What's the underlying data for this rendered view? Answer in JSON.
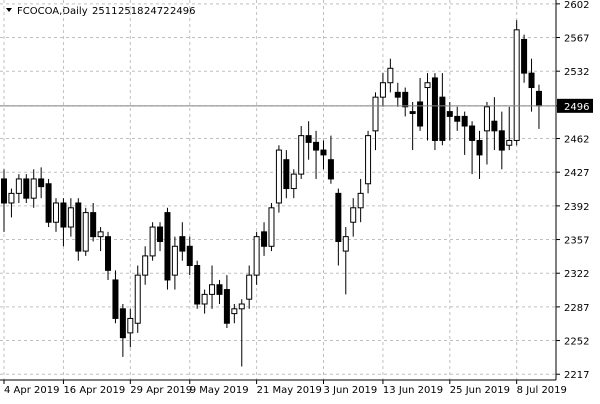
{
  "chart_data": {
    "type": "candlestick",
    "title": "FCOCOA,Daily",
    "header_values": [
      2511,
      2518,
      2472,
      2496
    ],
    "last_price": 2496,
    "categories": [
      "4 Apr 2019",
      null,
      null,
      null,
      null,
      null,
      null,
      null,
      "16 Apr 2019",
      null,
      null,
      null,
      null,
      null,
      null,
      null,
      null,
      "29 Apr 2019",
      null,
      null,
      null,
      null,
      null,
      null,
      null,
      "9 May 2019",
      null,
      null,
      null,
      null,
      null,
      null,
      null,
      null,
      "21 May 2019",
      null,
      null,
      null,
      null,
      null,
      null,
      null,
      null,
      "3 Jun 2019",
      null,
      null,
      null,
      null,
      null,
      null,
      null,
      "13 Jun 2019",
      null,
      null,
      null,
      null,
      null,
      null,
      null,
      null,
      "25 Jun 2019",
      null,
      null,
      null,
      null,
      null,
      null,
      null,
      null,
      "8 Jul 2019",
      null,
      null,
      null
    ],
    "open": [
      2420,
      2395,
      2405,
      2420,
      2400,
      2420,
      2415,
      2375,
      2395,
      2370,
      2395,
      2345,
      2385,
      2360,
      2360,
      2315,
      2285,
      2260,
      2270,
      2320,
      2340,
      2370,
      2385,
      2320,
      2360,
      2350,
      2330,
      2290,
      2300,
      2310,
      2305,
      2280,
      2285,
      2295,
      2320,
      2365,
      2350,
      2395,
      2440,
      2410,
      2425,
      2465,
      2458,
      2450,
      2440,
      2405,
      2345,
      2375,
      2390,
      2415,
      2470,
      2505,
      2520,
      2510,
      2510,
      2490,
      2500,
      2515,
      2525,
      2505,
      2490,
      2485,
      2485,
      2475,
      2460,
      2470,
      2480,
      2470,
      2455,
      2460,
      2565,
      2530,
      2511
    ],
    "high": [
      2430,
      2410,
      2425,
      2425,
      2430,
      2432,
      2420,
      2400,
      2400,
      2400,
      2400,
      2390,
      2395,
      2370,
      2365,
      2325,
      2290,
      2285,
      2330,
      2350,
      2375,
      2375,
      2390,
      2360,
      2375,
      2360,
      2335,
      2305,
      2330,
      2315,
      2320,
      2290,
      2295,
      2330,
      2365,
      2375,
      2395,
      2455,
      2450,
      2430,
      2475,
      2480,
      2470,
      2460,
      2465,
      2410,
      2370,
      2400,
      2420,
      2470,
      2510,
      2530,
      2545,
      2520,
      2515,
      2500,
      2525,
      2530,
      2530,
      2530,
      2500,
      2495,
      2490,
      2480,
      2470,
      2500,
      2505,
      2490,
      2495,
      2585,
      2570,
      2545,
      2518
    ],
    "low": [
      2365,
      2380,
      2395,
      2395,
      2390,
      2400,
      2370,
      2365,
      2350,
      2360,
      2335,
      2340,
      2355,
      2345,
      2315,
      2270,
      2235,
      2245,
      2260,
      2310,
      2335,
      2345,
      2305,
      2305,
      2335,
      2320,
      2285,
      2280,
      2285,
      2290,
      2265,
      2270,
      2225,
      2285,
      2310,
      2340,
      2345,
      2385,
      2400,
      2400,
      2420,
      2440,
      2420,
      2430,
      2415,
      2330,
      2300,
      2360,
      2375,
      2405,
      2450,
      2495,
      2510,
      2495,
      2485,
      2450,
      2470,
      2460,
      2450,
      2455,
      2460,
      2470,
      2445,
      2425,
      2420,
      2435,
      2450,
      2430,
      2450,
      2455,
      2520,
      2490,
      2472
    ],
    "close": [
      2395,
      2405,
      2420,
      2400,
      2420,
      2412,
      2375,
      2395,
      2370,
      2390,
      2345,
      2385,
      2360,
      2365,
      2325,
      2275,
      2255,
      2275,
      2320,
      2340,
      2370,
      2355,
      2315,
      2350,
      2345,
      2330,
      2290,
      2300,
      2310,
      2300,
      2270,
      2285,
      2290,
      2320,
      2360,
      2350,
      2390,
      2450,
      2410,
      2425,
      2465,
      2458,
      2450,
      2445,
      2420,
      2355,
      2360,
      2390,
      2405,
      2465,
      2505,
      2520,
      2535,
      2505,
      2495,
      2488,
      2475,
      2520,
      2460,
      2460,
      2485,
      2480,
      2475,
      2460,
      2445,
      2495,
      2470,
      2450,
      2460,
      2575,
      2530,
      2515,
      2496
    ],
    "ylim": [
      2211,
      2606
    ],
    "yticks": [
      2217,
      2252,
      2287,
      2322,
      2357,
      2392,
      2427,
      2462,
      2496,
      2532,
      2567,
      2602
    ],
    "grid": true,
    "up_color": "#ffffff",
    "down_color": "#000000"
  }
}
